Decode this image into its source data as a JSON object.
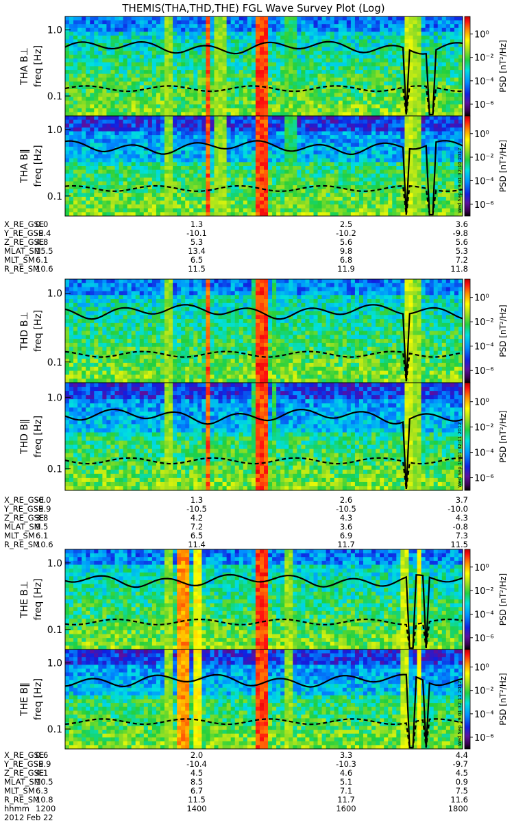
{
  "title": "THEMIS(THA,THD,THE) FGL Wave Survey Plot (Log)",
  "colorbar": {
    "label": "PSD [nT²/Hz]",
    "ticks": [
      "10⁰",
      "10⁻²",
      "10⁻⁴",
      "10⁻⁶"
    ],
    "log_range": [
      -7,
      1.5
    ]
  },
  "chart_data": {
    "type": "heatmap",
    "x_range_hhmm": [
      1200,
      1800
    ],
    "ylabel": "freq [Hz]",
    "ylim_hz": [
      0.05,
      1.6
    ],
    "y_scale": "log",
    "yticks": [
      "1.0",
      "0.1"
    ],
    "line_series": [
      "fce/fci proxy (solid)",
      "lower reference (dashed)"
    ],
    "time_ticks": [
      "1200",
      "1400",
      "1600",
      "1800"
    ],
    "date": "2012 Feb 22",
    "panels": [
      {
        "probe": "THA",
        "component": "B⊥",
        "ylabel": "THA B⊥",
        "stamp": ""
      },
      {
        "probe": "THA",
        "component": "B‖",
        "ylabel": "THA B‖",
        "stamp": "Wed Sep 19 01:32:10 2012"
      },
      {
        "probe": "THD",
        "component": "B⊥",
        "ylabel": "THD B⊥",
        "stamp": ""
      },
      {
        "probe": "THD",
        "component": "B‖",
        "ylabel": "THD B‖",
        "stamp": "Wed Sep 19 01:32:11 2012"
      },
      {
        "probe": "THE",
        "component": "B⊥",
        "ylabel": "THE B⊥",
        "stamp": ""
      },
      {
        "probe": "THE",
        "component": "B‖",
        "ylabel": "THE B‖",
        "stamp": "Wed Sep 19 01:32:11 2012"
      }
    ],
    "ephemeris": [
      {
        "probe": "THA",
        "rows": [
          {
            "label": "X_RE_GSE",
            "values": [
              "0.0",
              "1.3",
              "2.5",
              "3.6"
            ]
          },
          {
            "label": "Y_RE_GSE",
            "values": [
              "-9.4",
              "-10.1",
              "-10.2",
              "-9.8"
            ]
          },
          {
            "label": "Z_RE_GSE",
            "values": [
              "4.8",
              "5.3",
              "5.6",
              "5.6"
            ]
          },
          {
            "label": "MLAT_SM",
            "values": [
              "15.5",
              "13.4",
              "9.8",
              "5.3"
            ]
          },
          {
            "label": "MLT_SM",
            "values": [
              "6.1",
              "6.5",
              "6.8",
              "7.2"
            ]
          },
          {
            "label": "R_RE_SM",
            "values": [
              "10.6",
              "11.5",
              "11.9",
              "11.8"
            ]
          }
        ]
      },
      {
        "probe": "THD",
        "rows": [
          {
            "label": "X_RE_GSE",
            "values": [
              "-0.0",
              "1.3",
              "2.6",
              "3.7"
            ]
          },
          {
            "label": "Y_RE_GSE",
            "values": [
              "-9.9",
              "-10.5",
              "-10.5",
              "-10.0"
            ]
          },
          {
            "label": "Z_RE_GSE",
            "values": [
              "3.8",
              "4.2",
              "4.3",
              "4.3"
            ]
          },
          {
            "label": "MLAT_SM",
            "values": [
              "9.5",
              "7.2",
              "3.6",
              "-0.8"
            ]
          },
          {
            "label": "MLT_SM",
            "values": [
              "6.1",
              "6.5",
              "6.9",
              "7.3"
            ]
          },
          {
            "label": "R_RE_SM",
            "values": [
              "10.6",
              "11.4",
              "11.7",
              "11.5"
            ]
          }
        ]
      },
      {
        "probe": "THE",
        "rows": [
          {
            "label": "X_RE_GSE",
            "values": [
              "0.6",
              "2.0",
              "3.3",
              "4.4"
            ]
          },
          {
            "label": "Y_RE_GSE",
            "values": [
              "-9.9",
              "-10.4",
              "-10.3",
              "-9.7"
            ]
          },
          {
            "label": "Z_RE_GSE",
            "values": [
              "4.1",
              "4.5",
              "4.6",
              "4.5"
            ]
          },
          {
            "label": "MLAT_SM",
            "values": [
              "10.5",
              "8.5",
              "5.1",
              "0.9"
            ]
          },
          {
            "label": "MLT_SM",
            "values": [
              "6.3",
              "6.7",
              "7.1",
              "7.5"
            ]
          },
          {
            "label": "R_RE_SM",
            "values": [
              "10.8",
              "11.5",
              "11.7",
              "11.6"
            ]
          },
          {
            "label": "hhmm",
            "values": [
              "1200",
              "1400",
              "1600",
              "1800"
            ]
          }
        ]
      }
    ]
  }
}
